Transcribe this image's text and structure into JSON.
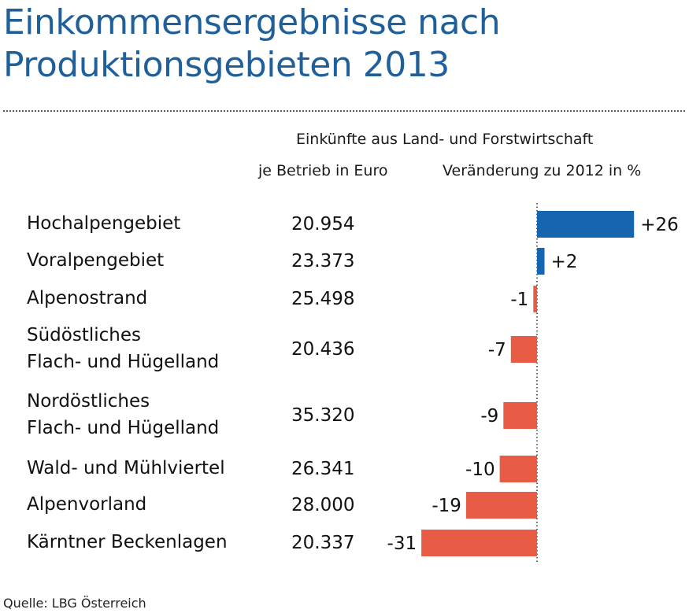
{
  "title": {
    "line1": "Einkommensergebnisse nach",
    "line2": "Produktionsgebieten 2013"
  },
  "headers": {
    "main": "Einkünfte aus Land- und Forstwirtschaft",
    "col_value": "je Betrieb in Euro",
    "col_change": "Veränderung zu 2012 in %"
  },
  "source": "Quelle: LBG Österreich",
  "colors": {
    "title": "#1f5f9a",
    "positive": "#1565b0",
    "negative": "#e85c45"
  },
  "chart_data": {
    "type": "bar",
    "orientation": "horizontal",
    "title": "Einkommensergebnisse nach Produktionsgebieten 2013",
    "subtitle": "Einkünfte aus Land- und Forstwirtschaft",
    "categories": [
      [
        "Hochalpengebiet"
      ],
      [
        "Voralpengebiet"
      ],
      [
        "Alpenostrand"
      ],
      [
        "Südöstliches",
        "Flach- und Hügelland"
      ],
      [
        "Nordöstliches",
        "Flach- und Hügelland"
      ],
      [
        "Wald- und Mühlviertel"
      ],
      [
        "Alpenvorland"
      ],
      [
        "Kärntner Beckenlagen"
      ]
    ],
    "series": [
      {
        "name": "je Betrieb in Euro",
        "values": [
          20954,
          23373,
          25498,
          20436,
          35320,
          26341,
          28000,
          20337
        ],
        "labels": [
          "20.954",
          "23.373",
          "25.498",
          "20.436",
          "35.320",
          "26.341",
          "28.000",
          "20.337"
        ]
      },
      {
        "name": "Veränderung zu 2012 in %",
        "values": [
          26,
          2,
          -1,
          -7,
          -9,
          -10,
          -19,
          -31
        ],
        "labels": [
          "+26",
          "+2",
          "-1",
          "-7",
          "-9",
          "-10",
          "-19",
          "-31"
        ]
      }
    ],
    "grid": false
  }
}
